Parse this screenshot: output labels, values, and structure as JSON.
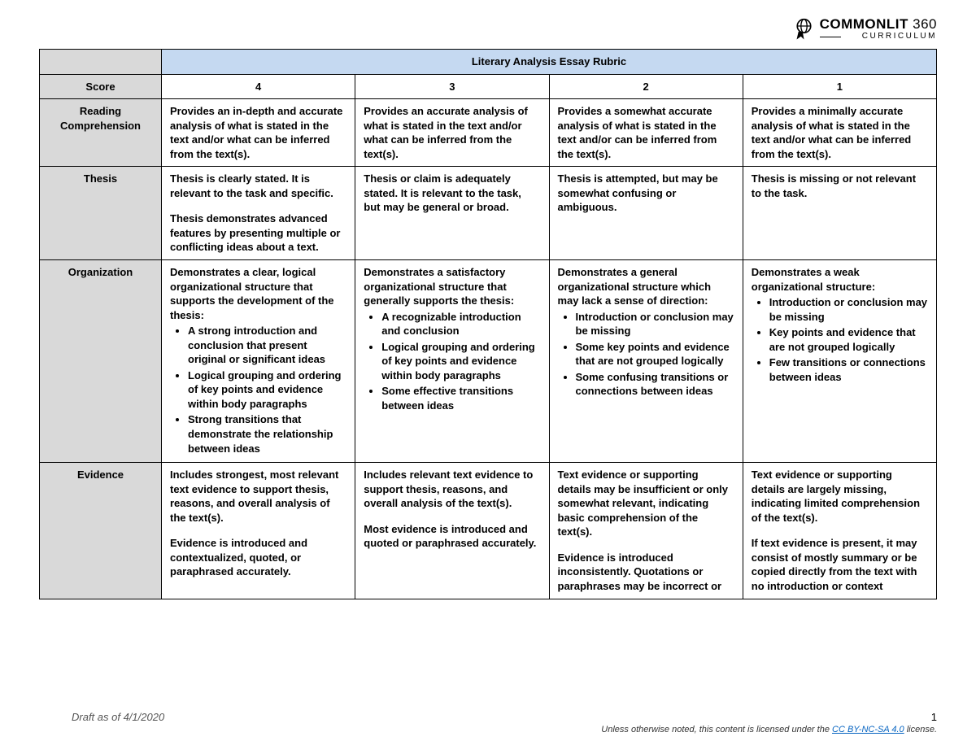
{
  "brand": {
    "name_bold": "COMMONLIT",
    "name_thin": "360",
    "subtitle": "CURRICULUM"
  },
  "rubric": {
    "title": "Literary Analysis Essay Rubric",
    "score_label": "Score",
    "scores": [
      "4",
      "3",
      "2",
      "1"
    ],
    "rows": [
      {
        "label": "Reading Comprehension",
        "cells": [
          {
            "paras": [
              "Provides an in-depth and accurate analysis of what is stated in the text and/or what can be inferred from the text(s)."
            ]
          },
          {
            "paras": [
              "Provides an accurate analysis of what is stated in the text and/or what can be inferred from the text(s)."
            ]
          },
          {
            "paras": [
              "Provides a somewhat accurate analysis of what is stated in the text and/or can be inferred from the text(s)."
            ]
          },
          {
            "paras": [
              "Provides a minimally accurate analysis of what is stated in the text and/or what can be inferred from the text(s)."
            ]
          }
        ]
      },
      {
        "label": "Thesis",
        "cells": [
          {
            "paras": [
              "Thesis is clearly stated. It is relevant to the task and specific.",
              "Thesis demonstrates advanced features by presenting multiple or conflicting ideas about a text."
            ]
          },
          {
            "paras": [
              "Thesis or claim is adequately stated. It is relevant to the task, but may be general or broad."
            ]
          },
          {
            "paras": [
              "Thesis is attempted, but may be somewhat confusing or ambiguous."
            ]
          },
          {
            "paras": [
              "Thesis is missing or not relevant to the task."
            ]
          }
        ]
      },
      {
        "label": "Organization",
        "cells": [
          {
            "intro": "Demonstrates a clear, logical organizational structure that supports the development of the thesis:",
            "bullets": [
              "A strong introduction and conclusion that present original or significant ideas",
              "Logical grouping and ordering of key points and evidence within body paragraphs",
              "Strong transitions that demonstrate the relationship between ideas"
            ]
          },
          {
            "intro": "Demonstrates a satisfactory organizational structure that generally supports the thesis:",
            "bullets": [
              "A recognizable introduction and conclusion",
              "Logical grouping and ordering of key points and evidence within body paragraphs",
              "Some effective transitions between ideas"
            ]
          },
          {
            "intro": "Demonstrates a general organizational structure which may lack a sense of direction:",
            "bullets": [
              "Introduction or conclusion may be missing",
              "Some key points and evidence that are not grouped logically",
              "Some confusing transitions or connections between ideas"
            ]
          },
          {
            "intro": "Demonstrates a weak organizational structure:",
            "bullets": [
              "Introduction or conclusion may be missing",
              "Key points and evidence that are not grouped logically",
              "Few transitions or connections between ideas"
            ]
          }
        ]
      },
      {
        "label": "Evidence",
        "cells": [
          {
            "paras": [
              "Includes strongest, most relevant text evidence to support thesis, reasons, and overall analysis of the text(s).",
              "Evidence is introduced and contextualized, quoted, or paraphrased accurately."
            ]
          },
          {
            "paras": [
              "Includes relevant text evidence to support thesis, reasons, and overall analysis of the text(s).",
              "Most evidence is introduced and quoted or paraphrased accurately."
            ]
          },
          {
            "paras": [
              "Text evidence or supporting details may be insufficient or only somewhat relevant, indicating basic comprehension of the text(s).",
              "Evidence is introduced inconsistently. Quotations or paraphrases may be incorrect or"
            ]
          },
          {
            "paras": [
              "Text evidence or supporting details are largely missing, indicating limited comprehension of the text(s).",
              "If text evidence is present, it may consist of mostly summary or be copied directly from the text with no introduction or context"
            ]
          }
        ]
      }
    ]
  },
  "footer": {
    "draft": "Draft as of 4/1/2020",
    "page": "1",
    "license_pre": "Unless otherwise noted, this content is licensed under the ",
    "license_link": "CC BY-NC-SA 4.0",
    "license_post": " license."
  },
  "colors": {
    "title_bg": "#c5d9f1",
    "header_bg": "#d9d9d9",
    "border": "#000000",
    "link": "#0563c1"
  }
}
